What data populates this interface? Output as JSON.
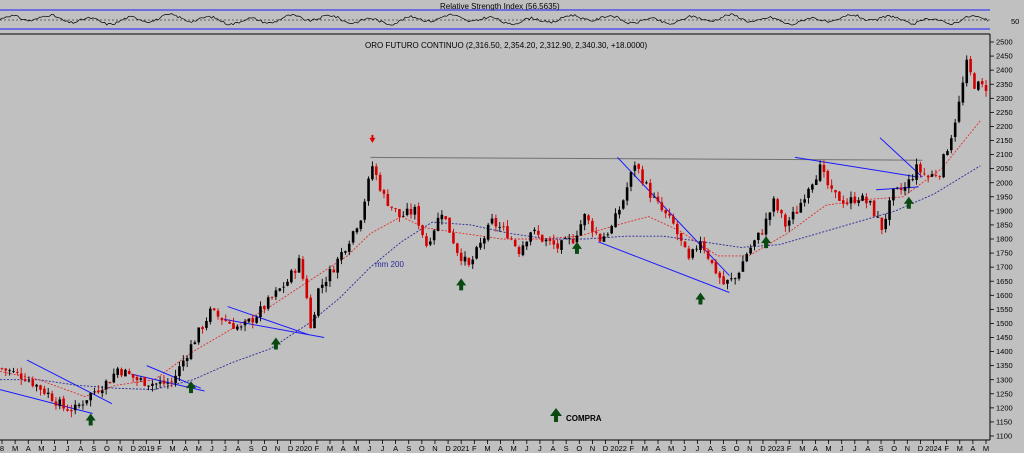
{
  "rsi_panel": {
    "title": "Relative Strength Index (56.5635)",
    "level_label": "50",
    "value": 56.5635
  },
  "price_panel": {
    "title": "ORO FUTURO CONTINUO (2,316.50, 2,354.20, 2,312.90, 2,340.30, +18.0000)",
    "ma_label": "mm 200",
    "legend_label": "COMPRA"
  },
  "colors": {
    "background": "#c0c0c0",
    "candle_up": "#000000",
    "candle_down": "#d40000",
    "trendline": "#1a1aff",
    "resistance": "#707070",
    "ma_short": "#e03030",
    "ma_long": "#2a2a9a",
    "buy_arrow": "#0a4a12",
    "sell_arrow": "#e00000"
  },
  "chart_data": {
    "type": "candlestick",
    "title": "ORO FUTURO CONTINUO (2,316.50, 2,354.20, 2,312.90, 2,340.30, +18.0000)",
    "last_bar": {
      "open": 2316.5,
      "high": 2354.2,
      "low": 2312.9,
      "close": 2340.3,
      "change": 18.0
    },
    "ylim": [
      1100,
      2500
    ],
    "y_ticks": [
      1100,
      1150,
      1200,
      1250,
      1300,
      1350,
      1400,
      1450,
      1500,
      1550,
      1600,
      1650,
      1700,
      1750,
      1800,
      1850,
      1900,
      1950,
      2000,
      2050,
      2100,
      2150,
      2200,
      2250,
      2300,
      2350,
      2400,
      2450,
      2500
    ],
    "x_ticks": [
      "8",
      "M",
      "A",
      "M",
      "J",
      "J",
      "A",
      "S",
      "O",
      "N",
      "D",
      "2019",
      "F",
      "M",
      "A",
      "M",
      "J",
      "J",
      "A",
      "S",
      "O",
      "N",
      "D",
      "2020",
      "F",
      "M",
      "A",
      "M",
      "J",
      "J",
      "A",
      "S",
      "O",
      "N",
      "D",
      "2021",
      "F",
      "M",
      "A",
      "M",
      "J",
      "J",
      "A",
      "S",
      "O",
      "N",
      "D",
      "2022",
      "F",
      "M",
      "A",
      "M",
      "J",
      "J",
      "A",
      "S",
      "O",
      "N",
      "D",
      "2023",
      "F",
      "M",
      "A",
      "M",
      "J",
      "J",
      "A",
      "S",
      "O",
      "N",
      "D",
      "2024",
      "F",
      "M",
      "A",
      "M"
    ],
    "price_path": [
      [
        0,
        1340
      ],
      [
        6,
        1310
      ],
      [
        12,
        1250
      ],
      [
        16,
        1200
      ],
      [
        19,
        1195
      ],
      [
        23,
        1250
      ],
      [
        28,
        1300
      ],
      [
        30,
        1340
      ],
      [
        35,
        1300
      ],
      [
        40,
        1285
      ],
      [
        44,
        1290
      ],
      [
        49,
        1420
      ],
      [
        54,
        1540
      ],
      [
        58,
        1510
      ],
      [
        62,
        1480
      ],
      [
        66,
        1530
      ],
      [
        70,
        1590
      ],
      [
        74,
        1650
      ],
      [
        77,
        1720
      ],
      [
        79,
        1600
      ],
      [
        80,
        1480
      ],
      [
        82,
        1620
      ],
      [
        86,
        1700
      ],
      [
        90,
        1800
      ],
      [
        93,
        1880
      ],
      [
        96,
        2060
      ],
      [
        99,
        1950
      ],
      [
        103,
        1880
      ],
      [
        107,
        1900
      ],
      [
        110,
        1780
      ],
      [
        114,
        1900
      ],
      [
        118,
        1760
      ],
      [
        121,
        1700
      ],
      [
        124,
        1780
      ],
      [
        127,
        1860
      ],
      [
        131,
        1820
      ],
      [
        134,
        1760
      ],
      [
        137,
        1830
      ],
      [
        140,
        1800
      ],
      [
        144,
        1770
      ],
      [
        148,
        1800
      ],
      [
        151,
        1880
      ],
      [
        155,
        1800
      ],
      [
        158,
        1840
      ],
      [
        161,
        1940
      ],
      [
        164,
        2070
      ],
      [
        168,
        1960
      ],
      [
        171,
        1900
      ],
      [
        174,
        1850
      ],
      [
        178,
        1720
      ],
      [
        181,
        1800
      ],
      [
        184,
        1710
      ],
      [
        187,
        1640
      ],
      [
        190,
        1660
      ],
      [
        193,
        1750
      ],
      [
        197,
        1830
      ],
      [
        200,
        1930
      ],
      [
        203,
        1850
      ],
      [
        206,
        1900
      ],
      [
        209,
        1990
      ],
      [
        212,
        2050
      ],
      [
        215,
        1960
      ],
      [
        219,
        1930
      ],
      [
        222,
        1950
      ],
      [
        225,
        1920
      ],
      [
        228,
        1840
      ],
      [
        231,
        1960
      ],
      [
        234,
        1980
      ],
      [
        237,
        2050
      ],
      [
        240,
        2020
      ],
      [
        243,
        2040
      ],
      [
        246,
        2170
      ],
      [
        248,
        2280
      ],
      [
        250,
        2420
      ],
      [
        252,
        2350
      ],
      [
        254,
        2340
      ]
    ],
    "ma_short_path": [
      [
        0,
        1330
      ],
      [
        10,
        1300
      ],
      [
        22,
        1240
      ],
      [
        30,
        1280
      ],
      [
        40,
        1300
      ],
      [
        50,
        1400
      ],
      [
        60,
        1480
      ],
      [
        70,
        1560
      ],
      [
        80,
        1650
      ],
      [
        90,
        1740
      ],
      [
        96,
        1820
      ],
      [
        104,
        1880
      ],
      [
        110,
        1840
      ],
      [
        120,
        1820
      ],
      [
        130,
        1800
      ],
      [
        140,
        1800
      ],
      [
        150,
        1810
      ],
      [
        160,
        1850
      ],
      [
        168,
        1880
      ],
      [
        176,
        1830
      ],
      [
        186,
        1740
      ],
      [
        194,
        1740
      ],
      [
        204,
        1820
      ],
      [
        214,
        1920
      ],
      [
        224,
        1940
      ],
      [
        234,
        1950
      ],
      [
        244,
        2050
      ],
      [
        254,
        2220
      ]
    ],
    "ma_long_path": [
      [
        0,
        1300
      ],
      [
        10,
        1300
      ],
      [
        20,
        1280
      ],
      [
        30,
        1270
      ],
      [
        40,
        1265
      ],
      [
        50,
        1300
      ],
      [
        60,
        1360
      ],
      [
        70,
        1410
      ],
      [
        80,
        1500
      ],
      [
        88,
        1590
      ],
      [
        96,
        1700
      ],
      [
        104,
        1790
      ],
      [
        112,
        1860
      ],
      [
        122,
        1850
      ],
      [
        132,
        1820
      ],
      [
        142,
        1800
      ],
      [
        152,
        1800
      ],
      [
        162,
        1810
      ],
      [
        172,
        1810
      ],
      [
        182,
        1790
      ],
      [
        192,
        1770
      ],
      [
        202,
        1780
      ],
      [
        212,
        1820
      ],
      [
        222,
        1860
      ],
      [
        232,
        1900
      ],
      [
        242,
        1960
      ],
      [
        254,
        2060
      ]
    ],
    "trendlines": [
      [
        [
          7,
          1370
        ],
        [
          29,
          1215
        ]
      ],
      [
        [
          0,
          1265
        ],
        [
          24,
          1180
        ]
      ],
      [
        [
          38,
          1350
        ],
        [
          52,
          1270
        ]
      ],
      [
        [
          34,
          1320
        ],
        [
          53,
          1260
        ]
      ],
      [
        [
          59,
          1560
        ],
        [
          80,
          1460
        ]
      ],
      [
        [
          58,
          1515
        ],
        [
          84,
          1450
        ]
      ],
      [
        [
          160,
          2090
        ],
        [
          189,
          1670
        ]
      ],
      [
        [
          155,
          1790
        ],
        [
          189,
          1610
        ]
      ],
      [
        [
          206,
          2090
        ],
        [
          238,
          2020
        ]
      ],
      [
        [
          228,
          2160
        ],
        [
          239,
          2020
        ]
      ],
      [
        [
          227,
          1975
        ],
        [
          238,
          1985
        ]
      ]
    ],
    "resistance_line": [
      [
        96,
        2090
      ],
      [
        239,
        2080
      ]
    ],
    "buy_signals": [
      [
        23,
        1180
      ],
      [
        49,
        1295
      ],
      [
        71,
        1450
      ],
      [
        119,
        1660
      ],
      [
        149,
        1790
      ],
      [
        181,
        1610
      ],
      [
        198,
        1810
      ],
      [
        235,
        1950
      ]
    ],
    "sell_signals": [
      [
        96,
        2170
      ]
    ],
    "rsi_level": 50,
    "rsi_last": 56.5635
  }
}
